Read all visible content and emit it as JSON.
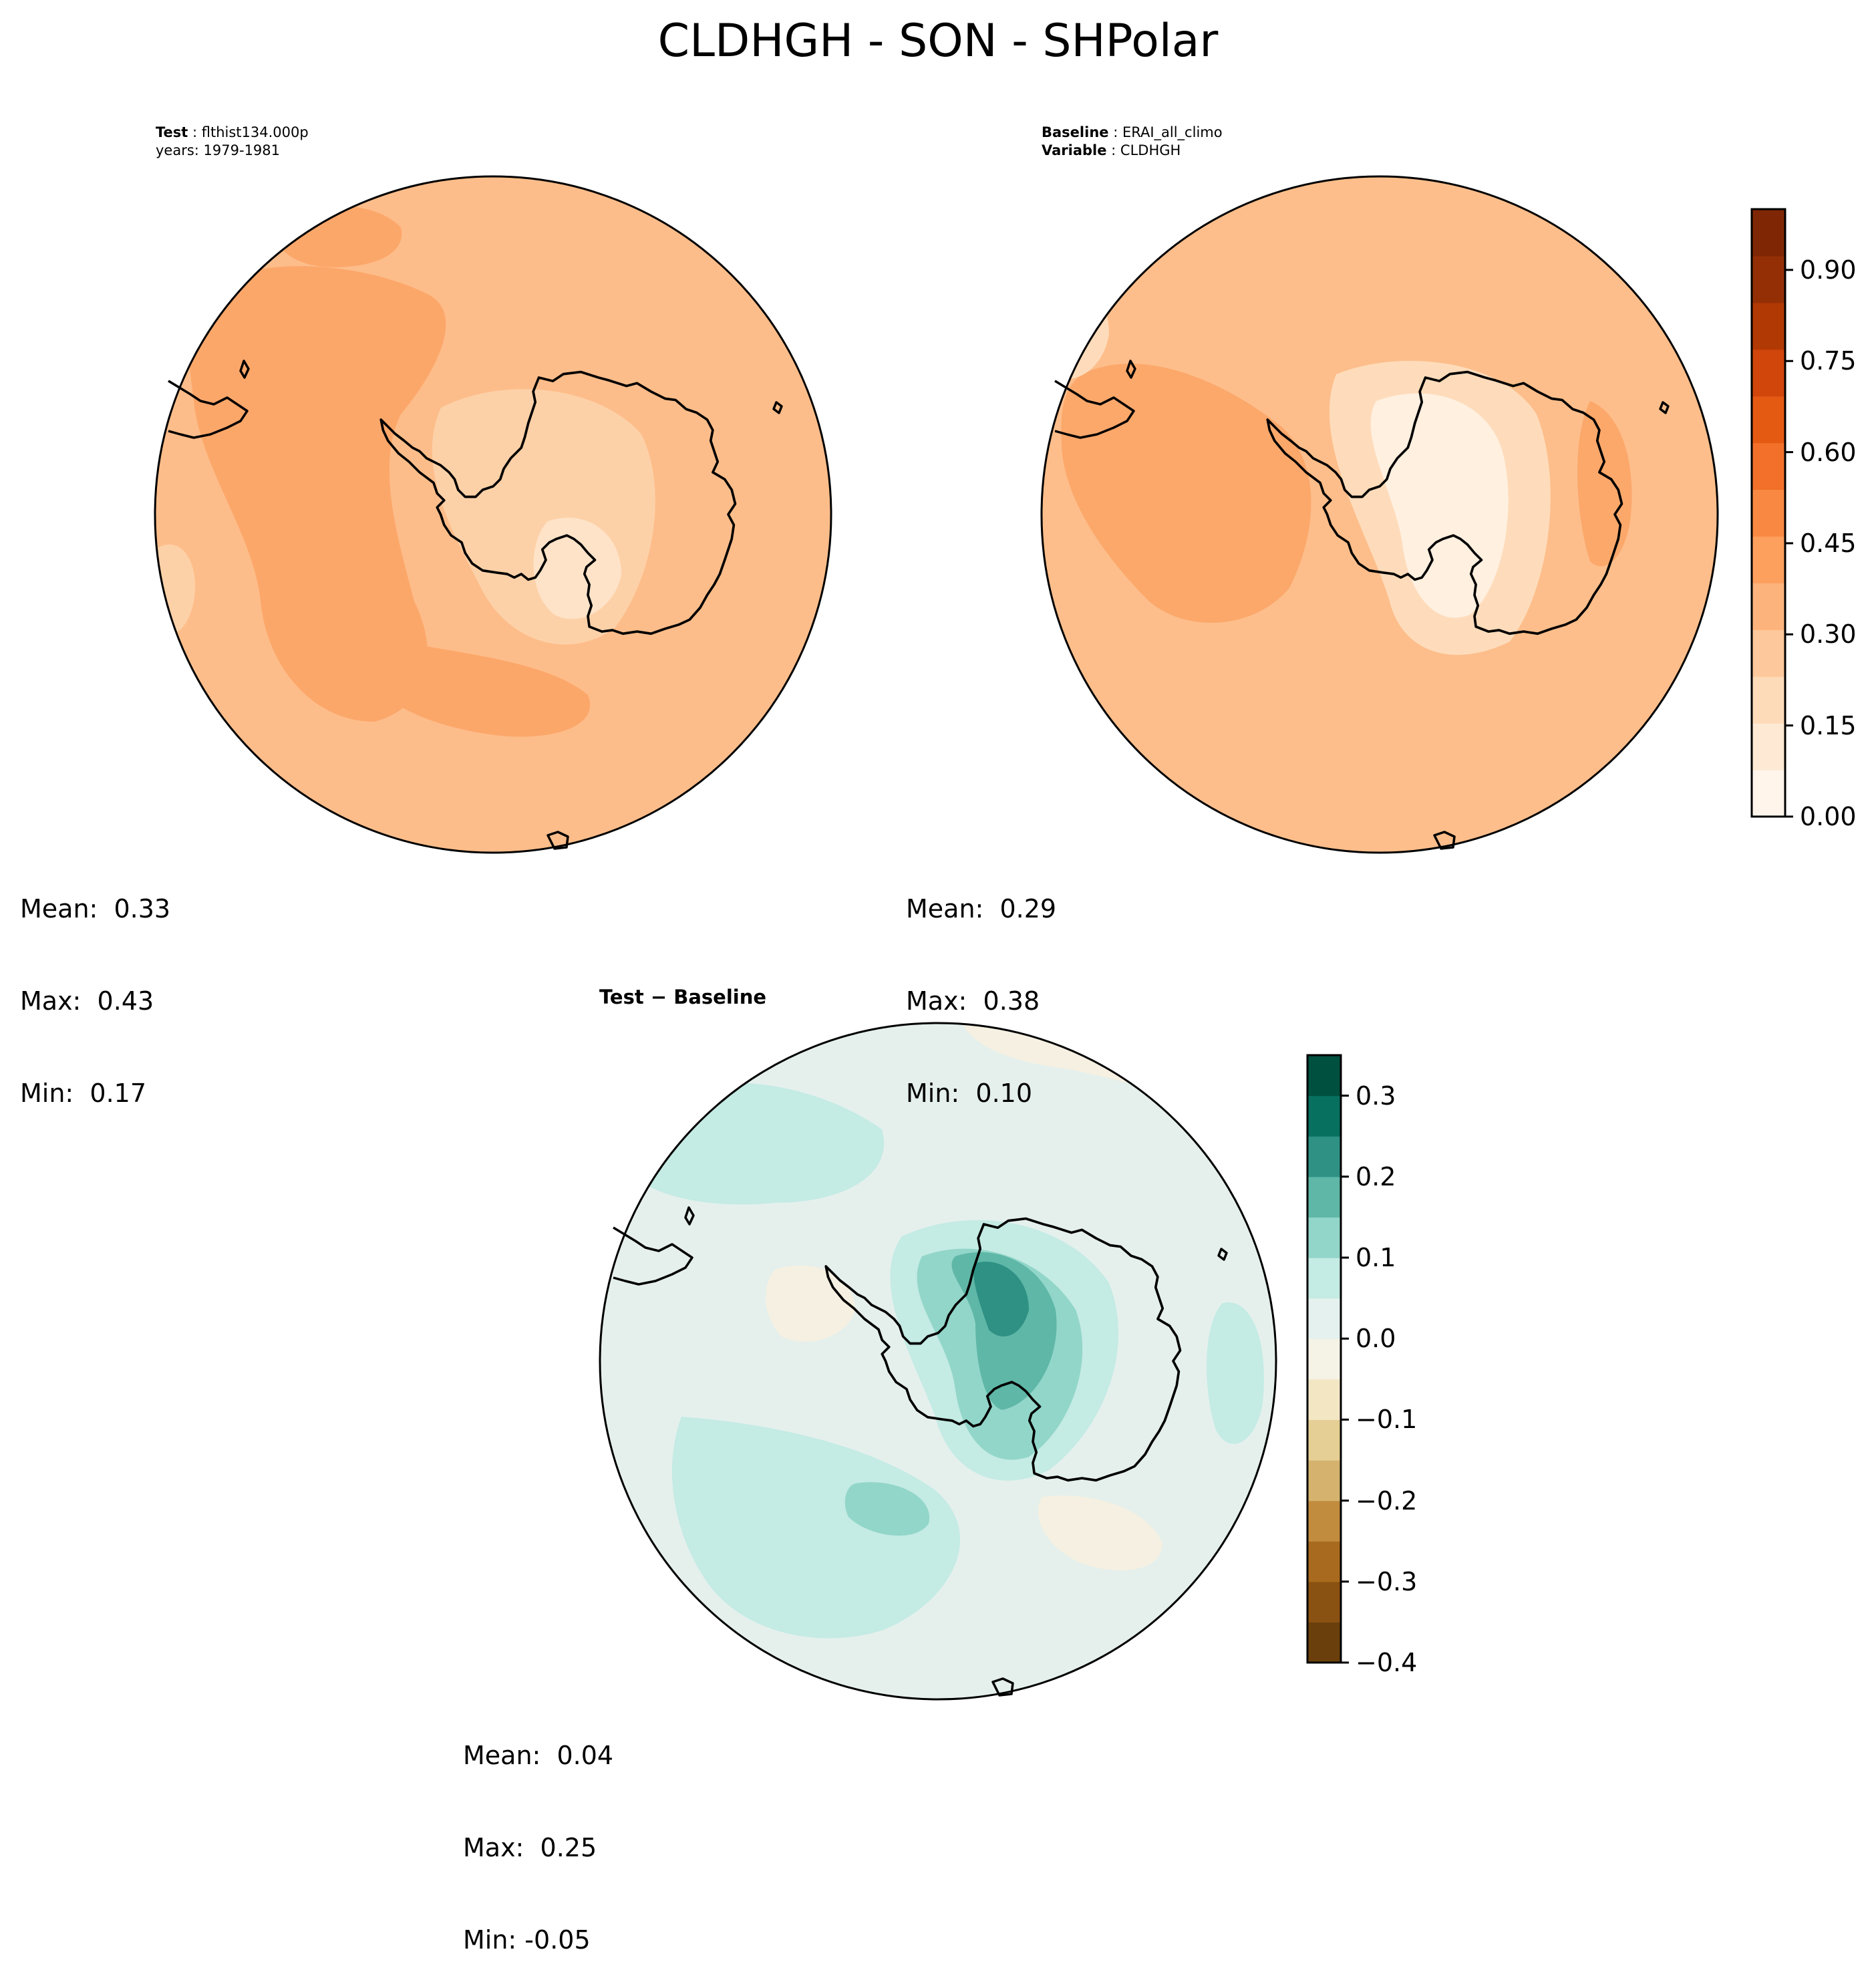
{
  "title": "CLDHGH - SON - SHPolar",
  "panels": {
    "test": {
      "label_key": "Test",
      "label_value": "flthist134.000p",
      "sub_line": "years: 1979-1981",
      "mean": "Mean:  0.33",
      "max": "Max:  0.43",
      "min": "Min:  0.17"
    },
    "baseline": {
      "label_key": "Baseline",
      "label_value": "ERAI_all_climo",
      "var_key": "Variable",
      "var_value": "CLDHGH",
      "mean": "Mean:  0.29",
      "max": "Max:  0.38",
      "min": "Min:  0.10"
    },
    "diff": {
      "title": "Test − Baseline",
      "mean": "Mean:  0.04",
      "max": "Max:  0.25",
      "min": "Min: -0.05"
    }
  },
  "colorbar_main": {
    "range": [
      0.0,
      1.0
    ],
    "ticks": [
      "0.00",
      "0.15",
      "0.30",
      "0.45",
      "0.60",
      "0.75",
      "0.90"
    ],
    "colors": [
      "#fff5eb",
      "#fee9d4",
      "#fddbb9",
      "#fdc89b",
      "#fdb47c",
      "#fd9f5d",
      "#f98942",
      "#f2702a",
      "#e55a13",
      "#d1460a",
      "#b13904",
      "#942f05",
      "#7f2704"
    ]
  },
  "colorbar_diff": {
    "range": [
      -0.4,
      0.35
    ],
    "ticks": [
      "−0.4",
      "−0.3",
      "−0.2",
      "−0.1",
      "0.0",
      "0.1",
      "0.2",
      "0.3"
    ],
    "colors": [
      "#6a3f0c",
      "#8a5212",
      "#a86a1e",
      "#c28c3f",
      "#d5b36e",
      "#e6cf95",
      "#f3e6c3",
      "#f5f2e6",
      "#e5f1ee",
      "#c4ebe4",
      "#92d6c9",
      "#5fb7a7",
      "#2e9184",
      "#07705f",
      "#00503f"
    ]
  },
  "map_colors": {
    "test_base": "#fdbd8a",
    "test_mid": "#fca76a",
    "test_light": "#fdd1a8",
    "test_pale": "#fee3c8",
    "base_base": "#fdbe8b",
    "base_mid": "#fca86b",
    "base_light": "#fedcbb",
    "base_pale": "#fff0e0",
    "diff_base": "#e5f0ed",
    "diff_light": "#c4ebe4",
    "diff_mid": "#92d6c9",
    "diff_dark": "#5fb7a7",
    "diff_darker": "#2e9184",
    "diff_neg": "#f5f0e1",
    "coast": "#000000"
  }
}
